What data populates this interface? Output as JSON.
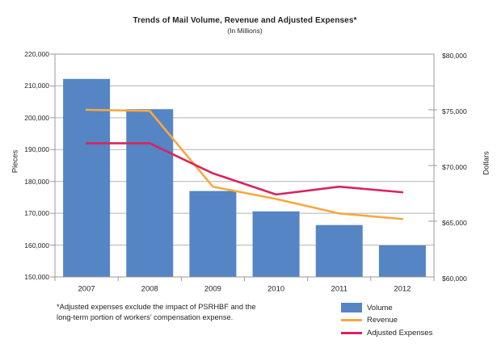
{
  "figure": {
    "title": "Trends of Mail Volume, Revenue and Adjusted Expenses*",
    "subtitle": "(In Millions)",
    "footnote_line1": "*Adjusted expenses exclude the impact of PSRHBF and the",
    "footnote_line2": "long-term portion of workers’ compensation expense."
  },
  "axes": {
    "left": {
      "title": "Pieces",
      "tick_labels": [
        "220,000",
        "210,000",
        "200,000",
        "190,000",
        "180,000",
        "170,000",
        "160,000",
        "150,000"
      ]
    },
    "right": {
      "title": "Dollars",
      "tick_labels": [
        "$80,000",
        "$75,000",
        "$70,000",
        "$65,000",
        "$60,000"
      ]
    },
    "x": {
      "tick_labels": [
        "2007",
        "2008",
        "2009",
        "2010",
        "2011",
        "2012"
      ]
    }
  },
  "legend": {
    "items": [
      {
        "label": "Volume",
        "swatch": "bar",
        "color": "#5585C4"
      },
      {
        "label": "Revenue",
        "swatch": "line",
        "color": "#F8A83D"
      },
      {
        "label": "Adjusted Expenses",
        "swatch": "line",
        "color": "#D8245F"
      }
    ]
  },
  "colors": {
    "bar_blue": "#5585C4",
    "line_orange": "#F8A83D",
    "line_pink": "#D8245F",
    "gridline": "#B3B3B3",
    "axis_border": "#9A9A9A",
    "text": "#231F20"
  },
  "chart_data": {
    "type": "combo: bar + line, dual axis",
    "title": "Trends of Mail Volume, Revenue and Adjusted Expenses*",
    "subtitle": "(In Millions)",
    "categories": [
      "2007",
      "2008",
      "2009",
      "2010",
      "2011",
      "2012"
    ],
    "series": [
      {
        "name": "Volume",
        "type": "bar",
        "axis": "left",
        "units": "pieces (millions)",
        "values": [
          212200,
          202700,
          177000,
          170600,
          166300,
          159900
        ]
      },
      {
        "name": "Revenue",
        "type": "line",
        "axis": "right",
        "units": "dollars (millions)",
        "values": [
          75000,
          74900,
          68100,
          67000,
          65700,
          65200
        ]
      },
      {
        "name": "Adjusted Expenses",
        "type": "line",
        "axis": "right",
        "units": "dollars (millions)",
        "values": [
          72000,
          72000,
          69300,
          67400,
          68100,
          67600
        ]
      }
    ],
    "left_axis": {
      "label": "Pieces",
      "min": 150000,
      "max": 220000,
      "major_step": 10000
    },
    "right_axis": {
      "label": "Dollars",
      "min": 60000,
      "max": 80000,
      "major_step": 5000
    },
    "grid": "horizontal gridlines at left-axis major steps",
    "legend_position": "bottom-right"
  }
}
